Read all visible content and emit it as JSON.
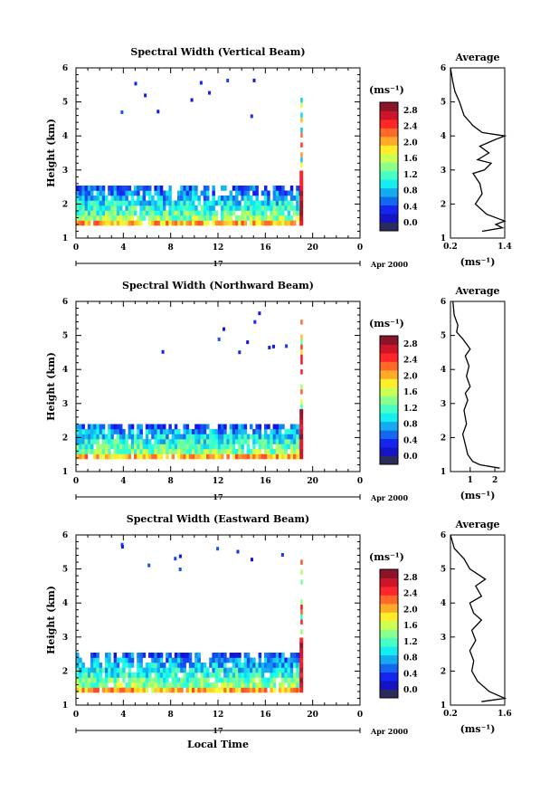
{
  "figure": {
    "bottom_label": "Local Time",
    "date_label": "Apr 2000",
    "date_day": "17",
    "y_label": "Height (km)",
    "colorbar_unit": "(ms⁻¹)",
    "avg_title": "Average",
    "avg_unit": "(ms⁻¹)"
  },
  "chart_data": [
    {
      "type": "heatmap",
      "title": "Spectral Width (Vertical Beam)",
      "xlabel": "",
      "ylabel": "Height (km)",
      "x_ticks": [
        "0",
        "4",
        "8",
        "12",
        "16",
        "20",
        "0"
      ],
      "xlim": [
        0,
        24
      ],
      "y_ticks": [
        "1",
        "2",
        "3",
        "4",
        "5",
        "6"
      ],
      "ylim": [
        1,
        6
      ],
      "colorbar": {
        "ticks": [
          "0.0",
          "0.4",
          "0.8",
          "1.2",
          "1.6",
          "2.0",
          "2.4",
          "2.8"
        ],
        "range": [
          0,
          3.0
        ]
      },
      "data_extent_hours": [
        0,
        19.2
      ],
      "layer_top_km": 2.4,
      "profile": {
        "title": "Average",
        "x_ticks": [
          "0.2",
          "1.4"
        ],
        "xlim": [
          0.2,
          1.4
        ],
        "height": [
          1.2,
          1.3,
          1.4,
          1.5,
          1.7,
          2.0,
          2.3,
          2.6,
          2.9,
          3.0,
          3.2,
          3.3,
          3.5,
          3.7,
          3.9,
          4.0,
          4.1,
          4.3,
          4.6,
          5.0,
          5.3,
          5.6,
          6.0
        ],
        "value": [
          0.9,
          1.35,
          1.2,
          1.4,
          1.0,
          0.75,
          0.9,
          0.85,
          0.7,
          0.95,
          1.1,
          0.8,
          1.05,
          0.85,
          1.2,
          1.4,
          0.9,
          0.7,
          0.5,
          0.4,
          0.3,
          0.25,
          0.2
        ]
      }
    },
    {
      "type": "heatmap",
      "title": "Spectral Width (Northward Beam)",
      "xlabel": "",
      "ylabel": "Height (km)",
      "x_ticks": [
        "0",
        "4",
        "8",
        "12",
        "16",
        "20",
        "0"
      ],
      "xlim": [
        0,
        24
      ],
      "y_ticks": [
        "1",
        "2",
        "3",
        "4",
        "5",
        "6"
      ],
      "ylim": [
        1,
        6
      ],
      "colorbar": {
        "ticks": [
          "0.0",
          "0.4",
          "0.8",
          "1.2",
          "1.6",
          "2.0",
          "2.4",
          "2.8"
        ],
        "range": [
          0,
          3.0
        ]
      },
      "data_extent_hours": [
        0,
        19.2
      ],
      "layer_top_km": 2.3,
      "profile": {
        "title": "Average",
        "x_ticks": [
          "1",
          "2"
        ],
        "xlim": [
          0.2,
          2.4
        ],
        "height": [
          1.1,
          1.2,
          1.3,
          1.5,
          1.8,
          2.1,
          2.4,
          2.8,
          3.1,
          3.3,
          3.5,
          3.8,
          4.1,
          4.4,
          4.6,
          4.9,
          5.1,
          5.3,
          5.6,
          6.0
        ],
        "value": [
          2.2,
          1.4,
          1.1,
          0.9,
          0.8,
          0.7,
          0.85,
          0.75,
          0.9,
          0.8,
          1.0,
          0.85,
          0.95,
          0.8,
          1.0,
          0.7,
          0.45,
          0.5,
          0.35,
          0.3
        ]
      }
    },
    {
      "type": "heatmap",
      "title": "Spectral Width (Eastward Beam)",
      "xlabel": "Local Time",
      "ylabel": "Height (km)",
      "x_ticks": [
        "0",
        "4",
        "8",
        "12",
        "16",
        "20",
        "0"
      ],
      "xlim": [
        0,
        24
      ],
      "y_ticks": [
        "1",
        "2",
        "3",
        "4",
        "5",
        "6"
      ],
      "ylim": [
        1,
        6
      ],
      "colorbar": {
        "ticks": [
          "0.0",
          "0.4",
          "0.8",
          "1.2",
          "1.6",
          "2.0",
          "2.4",
          "2.8"
        ],
        "range": [
          0,
          3.0
        ]
      },
      "data_extent_hours": [
        0,
        19.2
      ],
      "layer_top_km": 2.4,
      "profile": {
        "title": "Average",
        "x_ticks": [
          "0.2",
          "1.6"
        ],
        "xlim": [
          0.2,
          1.6
        ],
        "height": [
          1.1,
          1.2,
          1.4,
          1.7,
          2.0,
          2.3,
          2.6,
          2.9,
          3.2,
          3.5,
          3.7,
          4.0,
          4.2,
          4.5,
          4.7,
          5.0,
          5.3,
          5.6,
          6.0
        ],
        "value": [
          1.0,
          1.6,
          1.2,
          0.9,
          0.75,
          0.8,
          0.7,
          0.85,
          0.75,
          1.0,
          0.8,
          0.7,
          1.0,
          0.85,
          1.1,
          0.7,
          0.55,
          0.3,
          0.2
        ]
      }
    }
  ]
}
